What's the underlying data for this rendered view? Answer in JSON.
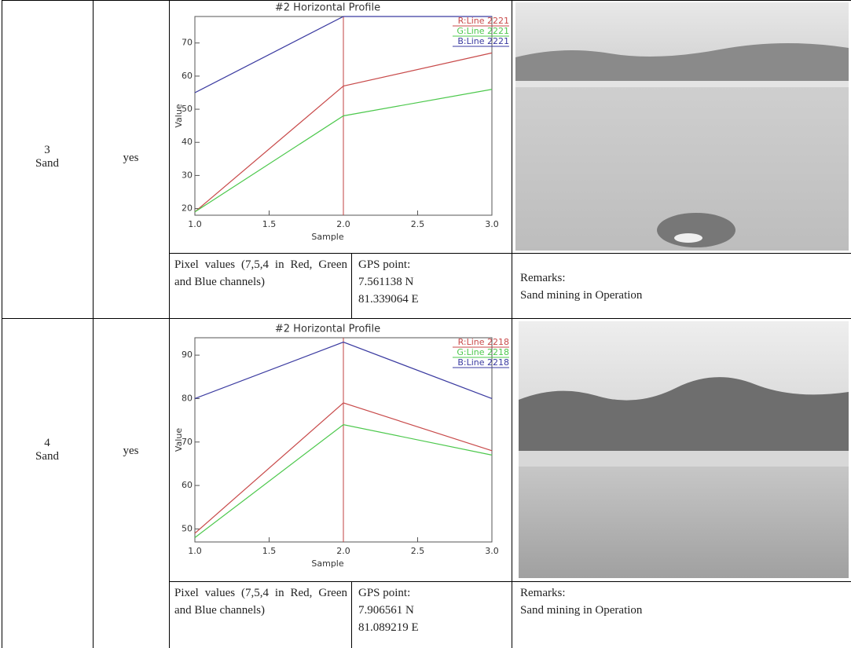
{
  "chart_data": [
    {
      "type": "line",
      "title": "#2 Horizontal Profile",
      "xlabel": "Sample",
      "ylabel": "Value",
      "x": [
        1,
        2,
        3
      ],
      "xlim": [
        1,
        3
      ],
      "xticks": [
        {
          "value": 1,
          "label": "1.0"
        },
        {
          "value": 1.5,
          "label": "1.5"
        },
        {
          "value": 2,
          "label": "2.0"
        },
        {
          "value": 2.5,
          "label": "2.5"
        },
        {
          "value": 3,
          "label": "3.0"
        }
      ],
      "ylim": [
        18,
        78
      ],
      "yticks": [
        20,
        30,
        40,
        50,
        60,
        70
      ],
      "marker_x": 2,
      "marker_color": "#c04040",
      "series": [
        {
          "name": "R:Line 2221",
          "color": "#c84a4a",
          "values": [
            19,
            57,
            67
          ]
        },
        {
          "name": "G:Line 2221",
          "color": "#4cc84c",
          "values": [
            19,
            48,
            56
          ]
        },
        {
          "name": "B:Line 2221",
          "color": "#3a3aa0",
          "values": [
            55,
            78,
            78
          ]
        }
      ]
    },
    {
      "type": "line",
      "title": "#2 Horizontal Profile",
      "xlabel": "Sample",
      "ylabel": "Value",
      "x": [
        1,
        2,
        3
      ],
      "xlim": [
        1,
        3
      ],
      "xticks": [
        {
          "value": 1,
          "label": "1.0"
        },
        {
          "value": 1.5,
          "label": "1.5"
        },
        {
          "value": 2,
          "label": "2.0"
        },
        {
          "value": 2.5,
          "label": "2.5"
        },
        {
          "value": 3,
          "label": "3.0"
        }
      ],
      "ylim": [
        47,
        94
      ],
      "yticks": [
        50,
        60,
        70,
        80,
        90
      ],
      "marker_x": 2,
      "marker_color": "#c04040",
      "series": [
        {
          "name": "R:Line 2218",
          "color": "#c84a4a",
          "values": [
            49,
            79,
            68
          ]
        },
        {
          "name": "G:Line 2218",
          "color": "#4cc84c",
          "values": [
            48,
            74,
            67
          ]
        },
        {
          "name": "B:Line 2218",
          "color": "#3a3aa0",
          "values": [
            80,
            93,
            80
          ]
        }
      ]
    }
  ],
  "table": {
    "rows": [
      {
        "id": "3",
        "class": "Sand",
        "flag": "yes",
        "pixel_note": "Pixel values (7,5,4 in Red, Green and Blue channels)",
        "gps_label": "GPS point:",
        "gps_lat": "7.561138 N",
        "gps_lon": "81.339064 E",
        "remarks_label": "Remarks:",
        "remarks": "Sand mining in Operation"
      },
      {
        "id": "4",
        "class": "Sand",
        "flag": "yes",
        "pixel_note": "Pixel values (7,5,4 in Red, Green and Blue channels)",
        "gps_label": "GPS point:",
        "gps_lat": "7.906561 N",
        "gps_lon": "81.089219 E",
        "remarks_label": "Remarks:",
        "remarks": "Sand mining in Operation"
      }
    ]
  }
}
